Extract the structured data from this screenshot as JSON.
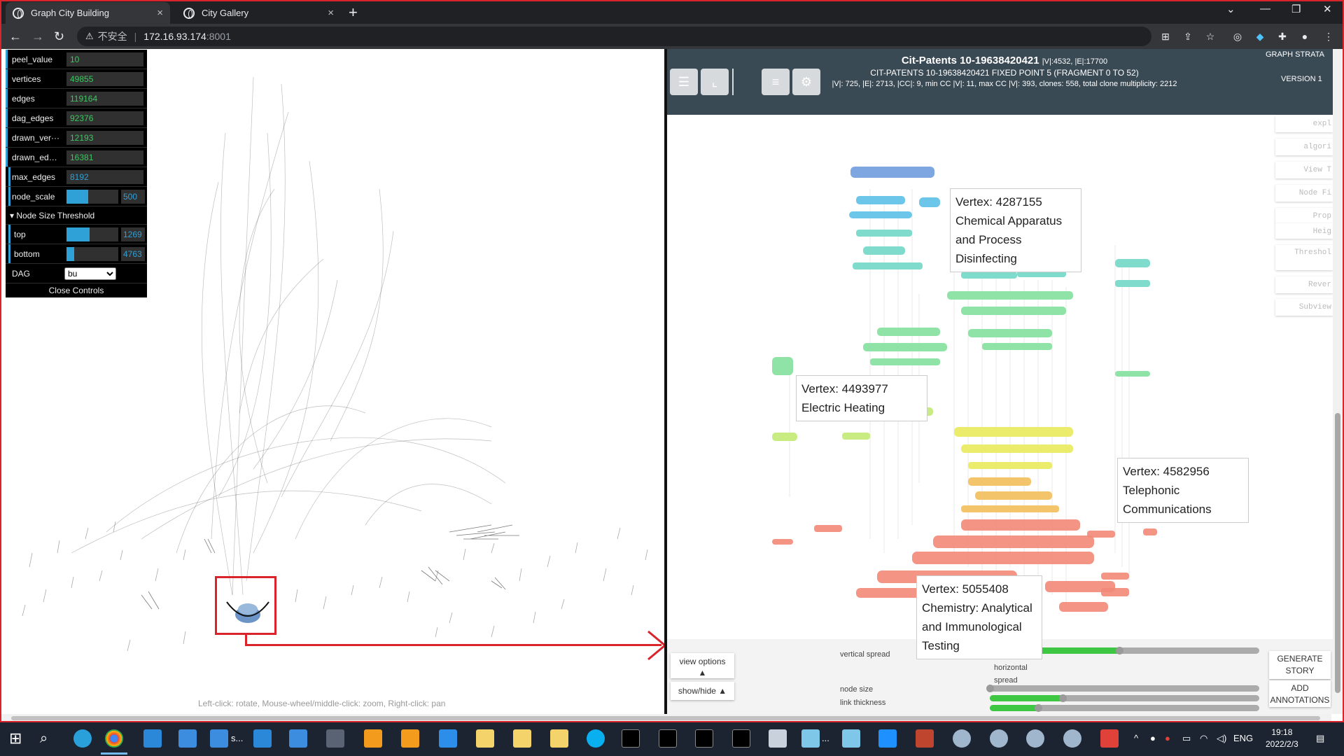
{
  "browser": {
    "tabs": [
      {
        "title": "Graph City Building",
        "close": "×",
        "active": true
      },
      {
        "title": "City Gallery",
        "close": "×",
        "active": false
      }
    ],
    "new_tab": "+",
    "address": {
      "insecure": "不安全",
      "host": "172.16.93.174",
      "port": ":8001"
    }
  },
  "controls": {
    "rows": [
      {
        "label": "peel_value",
        "value": "10"
      },
      {
        "label": "vertices",
        "value": "49855"
      },
      {
        "label": "edges",
        "value": "119164"
      },
      {
        "label": "dag_edges",
        "value": "92376"
      },
      {
        "label": "drawn_ver···",
        "value": "12193"
      },
      {
        "label": "drawn_edges",
        "value": "16381"
      },
      {
        "label": "max_edges",
        "value": "8192"
      }
    ],
    "node_scale": {
      "label": "node_scale",
      "value": "500",
      "fill": 0.42
    },
    "folder": "Node Size Threshold",
    "top": {
      "label": "top",
      "value": "1269",
      "fill": 0.45
    },
    "bottom": {
      "label": "bottom",
      "value": "4763",
      "fill": 0.15
    },
    "dag": {
      "label": "DAG",
      "value": "bu"
    },
    "close": "Close Controls"
  },
  "left_hint": "Left-click: rotate, Mouse-wheel/middle-click: zoom, Right-click: pan",
  "header": {
    "title": "Cit-Patents 10-19638420421",
    "title_stats": "|V|:4532, |E|:17700",
    "subtitle": "CIT-PATENTS 10-19638420421 FIXED POINT 5 (FRAGMENT 0 TO 52)",
    "stats": "|V|: 725, |E|: 2713, |CC|: 9, min CC |V|: 11, max CC |V|: 393, clones: 558, total clone multiplicity: 2212",
    "strata": "GRAPH STRATA",
    "version": "VERSION 1"
  },
  "side_panel": [
    "expl",
    "algori",
    "View T",
    "Node Fi",
    "Prop",
    "Heig",
    "Threshol",
    "Rever",
    "Subview"
  ],
  "tooltips": [
    {
      "line1": "Vertex: 4287155",
      "line2": "Chemical Apparatus",
      "line3": "and Process",
      "line4": "Disinfecting"
    },
    {
      "line1": "Vertex: 4493977",
      "line2": "Electric Heating"
    },
    {
      "line1": "Vertex: 4582956",
      "line2": "Telephonic",
      "line3": "Communications"
    },
    {
      "line1": "Vertex: 5055408",
      "line2": "Chemistry: Analytical",
      "line3": "and Immunological",
      "line4": "Testing"
    }
  ],
  "bottom": {
    "view_options": "view options",
    "view_options_arrow": "▲",
    "show_hide": "show/hide ▲",
    "vertical_spread": "vertical spread",
    "vertical_spread_value": 0.48,
    "horizontal_spread_1": "horizontal",
    "horizontal_spread_2": "spread",
    "horizontal_spread_value": 0.0,
    "node_size": "node size",
    "node_size_value": 0.27,
    "link_thickness": "link thickness",
    "link_thickness_value": 0.18,
    "generate_1": "GENERATE",
    "generate_2": "STORY",
    "add_1": "ADD",
    "add_2": "ANNOTATIONS"
  },
  "taskbar": {
    "lang": "ENG",
    "time": "19:18",
    "date": "2022/2/3",
    "s_label": "s...",
    "dots": "..."
  },
  "colors": {
    "accent": "#2fa1d6",
    "green": "#3dc742",
    "header": "#3a4a55",
    "highlight": "#d8242a"
  }
}
